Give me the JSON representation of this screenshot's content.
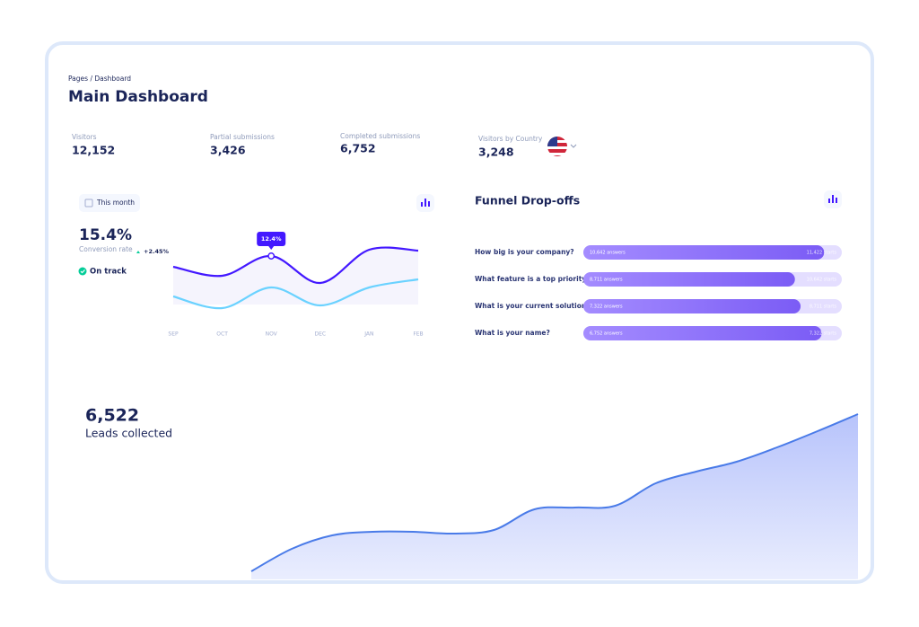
{
  "header": {
    "breadcrumb": "Pages / Dashboard",
    "title": "Main Dashboard"
  },
  "stats": [
    {
      "label": "Visitors",
      "value": "12,152"
    },
    {
      "label": "Partial submissions",
      "value": "3,426"
    },
    {
      "label": "Completed submissions",
      "value": "6,752"
    },
    {
      "label": "Visitors by Country",
      "value": "3,248"
    }
  ],
  "conversion": {
    "period": "This month",
    "rate": "15.4%",
    "rate_label": "Conversion rate",
    "change": "+2.45%",
    "status": "On track",
    "chart": {
      "type": "line",
      "categories": [
        "SEP",
        "OCT",
        "NOV",
        "DEC",
        "JAN",
        "FEB"
      ],
      "ylim": [
        5,
        14
      ],
      "series": [
        {
          "color": "#4318ff",
          "values": [
            11.2,
            10.2,
            12.4,
            9.4,
            13.1,
            13.0
          ],
          "value_labels": [
            null,
            null,
            "12.4%",
            null,
            null,
            null
          ]
        },
        {
          "color": "#6ad2ff",
          "values": [
            7.9,
            6.6,
            8.9,
            6.9,
            8.9,
            9.8
          ]
        }
      ]
    }
  },
  "funnel": {
    "title": "Funnel Drop-offs",
    "rows": [
      {
        "question": "How big is your company?",
        "answers": 10642,
        "answers_label": "10,642 answers",
        "starts": 11422,
        "starts_label": "11,422 starts"
      },
      {
        "question": "What feature is a top priority",
        "answers": 8711,
        "answers_label": "8,711 answers",
        "starts": 10642,
        "starts_label": "10,642 starts"
      },
      {
        "question": "What is your current solution?",
        "answers": 7322,
        "answers_label": "7,322 answers",
        "starts": 8711,
        "starts_label": "8,711 starts"
      },
      {
        "question": "What is your name?",
        "answers": 6752,
        "answers_label": "6,752 answers",
        "starts": 7322,
        "starts_label": "7,322 starts"
      }
    ]
  },
  "leads": {
    "value": "6,522",
    "label": "Leads collected",
    "chart": {
      "type": "area",
      "color": "#4a7be8",
      "ylim": [
        0,
        180
      ],
      "values": [
        2,
        27,
        42,
        46,
        46,
        44,
        48,
        71,
        73,
        75,
        100,
        113,
        124,
        140,
        158,
        177
      ]
    }
  }
}
